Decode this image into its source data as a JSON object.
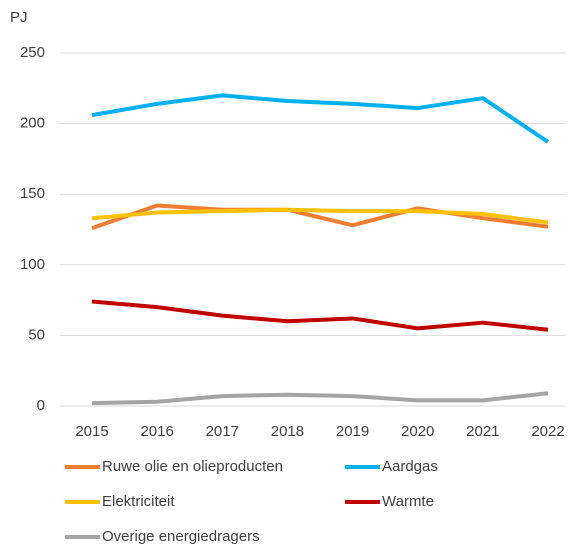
{
  "chart_data": {
    "type": "line",
    "y_label": "PJ",
    "categories": [
      "2015",
      "2016",
      "2017",
      "2018",
      "2019",
      "2020",
      "2021",
      "2022"
    ],
    "series": [
      {
        "name": "Ruwe olie en olieproducten",
        "color": "#ed7d31",
        "values": [
          126,
          142,
          139,
          139,
          128,
          140,
          133,
          127
        ]
      },
      {
        "name": "Aardgas",
        "color": "#00b0f0",
        "values": [
          206,
          214,
          220,
          216,
          214,
          211,
          218,
          187
        ]
      },
      {
        "name": "Elektriciteit",
        "color": "#ffc000",
        "values": [
          133,
          137,
          138,
          139,
          138,
          138,
          136,
          130
        ]
      },
      {
        "name": "Warmte",
        "color": "#c00000",
        "values": [
          74,
          70,
          64,
          60,
          62,
          55,
          59,
          54
        ]
      },
      {
        "name": "Overige energiedragers",
        "color": "#a5a5a5",
        "values": [
          2,
          3,
          7,
          8,
          7,
          4,
          4,
          9
        ]
      }
    ],
    "ylim": [
      0,
      250
    ],
    "yticks": [
      0,
      50,
      100,
      150,
      200,
      250
    ],
    "grid": true
  }
}
